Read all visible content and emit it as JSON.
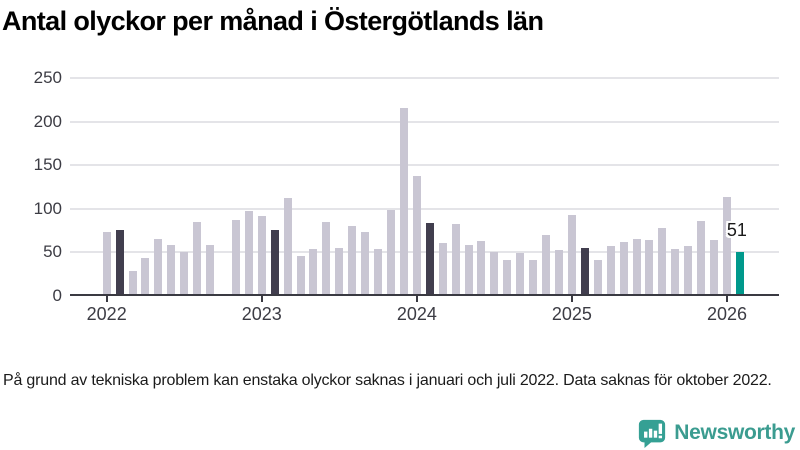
{
  "chart_data": {
    "type": "bar",
    "title": "Antal olyckor per månad i Östergötlands län",
    "xlabel": "",
    "ylabel": "",
    "ylim": [
      0,
      250
    ],
    "y_ticks": [
      0,
      50,
      100,
      150,
      200,
      250
    ],
    "x_tick_labels": [
      "2022",
      "2023",
      "2024",
      "2025",
      "2026"
    ],
    "grid": "horizontal",
    "legend": "none",
    "months": [
      "2022-01",
      "2022-02",
      "2022-03",
      "2022-04",
      "2022-05",
      "2022-06",
      "2022-07",
      "2022-08",
      "2022-09",
      "2022-10",
      "2022-11",
      "2022-12",
      "2023-01",
      "2023-02",
      "2023-03",
      "2023-04",
      "2023-05",
      "2023-06",
      "2023-07",
      "2023-08",
      "2023-09",
      "2023-10",
      "2023-11",
      "2023-12",
      "2024-01",
      "2024-02",
      "2024-03",
      "2024-04",
      "2024-05",
      "2024-06",
      "2024-07",
      "2024-08",
      "2024-09",
      "2024-10",
      "2024-11",
      "2024-12",
      "2025-01",
      "2025-02",
      "2025-03",
      "2025-04",
      "2025-05",
      "2025-06",
      "2025-07",
      "2025-08",
      "2025-09",
      "2025-10",
      "2025-11",
      "2025-12",
      "2026-01",
      "2026-02"
    ],
    "values": [
      73,
      76,
      29,
      44,
      65,
      58,
      50,
      85,
      58,
      null,
      87,
      97,
      92,
      76,
      112,
      46,
      54,
      85,
      55,
      80,
      73,
      54,
      99,
      216,
      138,
      84,
      61,
      83,
      58,
      63,
      50,
      41,
      49,
      41,
      70,
      53,
      93,
      55,
      41,
      57,
      62,
      65,
      64,
      78,
      54,
      57,
      86,
      64,
      113,
      51
    ],
    "missing_months": [
      "2022-10"
    ],
    "highlight": {
      "february_months_dark": [
        "2022-02",
        "2023-02",
        "2024-02",
        "2025-02"
      ],
      "latest_month_teal": "2026-02"
    },
    "annotation": {
      "month": "2026-02",
      "text": "51"
    },
    "colors": {
      "bar_default": "#c9c6d3",
      "bar_february": "#413e4e",
      "bar_latest": "#00998c",
      "gridline": "#e4e4e8",
      "axis": "#3a3a42",
      "axis_text": "#3c3c44",
      "annotation_text": "#1a1a1a",
      "brand_teal": "#3b9c90"
    }
  },
  "footnote": {
    "text": "På grund av tekniska problem kan enstaka olyckor saknas i januari och juli 2022. Data saknas för oktober 2022."
  },
  "branding": {
    "name": "Newsworthy"
  }
}
